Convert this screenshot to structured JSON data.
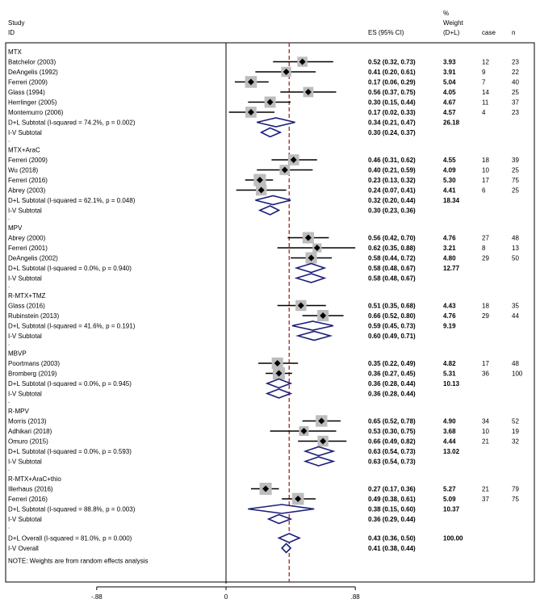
{
  "chart_data": {
    "type": "forest",
    "header": {
      "study": "Study",
      "id": "ID",
      "pct": "%",
      "weight": "Weight",
      "es": "ES (95% CI)",
      "dl": "(D+L)",
      "case": "case",
      "n": "n"
    },
    "axis": {
      "range": [
        -0.88,
        0.88
      ],
      "ticks": [
        {
          "value": -0.88,
          "label": "-.88"
        },
        {
          "value": 0,
          "label": "0"
        },
        {
          "value": 0.88,
          "label": ".88"
        }
      ],
      "reference_line": 0.43
    },
    "groups": [
      {
        "name": "MTX",
        "studies": [
          {
            "label": "Batchelor  (2003)",
            "es": 0.52,
            "lo": 0.32,
            "hi": 0.73,
            "es_text": "0.52 (0.32, 0.73)",
            "weight": "3.93",
            "case": "12",
            "n": "23"
          },
          {
            "label": "DeAngelis  (1992)",
            "es": 0.41,
            "lo": 0.2,
            "hi": 0.61,
            "es_text": "0.41 (0.20, 0.61)",
            "weight": "3.91",
            "case": "9",
            "n": "22"
          },
          {
            "label": "Ferreri  (2009)",
            "es": 0.17,
            "lo": 0.06,
            "hi": 0.29,
            "es_text": "0.17 (0.06, 0.29)",
            "weight": "5.04",
            "case": "7",
            "n": "40"
          },
          {
            "label": "Glass  (1994)",
            "es": 0.56,
            "lo": 0.37,
            "hi": 0.75,
            "es_text": "0.56 (0.37, 0.75)",
            "weight": "4.05",
            "case": "14",
            "n": "25"
          },
          {
            "label": "Herrlinger  (2005)",
            "es": 0.3,
            "lo": 0.15,
            "hi": 0.44,
            "es_text": "0.30 (0.15, 0.44)",
            "weight": "4.67",
            "case": "11",
            "n": "37"
          },
          {
            "label": "Montemurro  (2006)",
            "es": 0.17,
            "lo": 0.02,
            "hi": 0.33,
            "es_text": "0.17 (0.02, 0.33)",
            "weight": "4.57",
            "case": "4",
            "n": "23"
          }
        ],
        "dl": {
          "label": "D+L Subtotal  (I-squared = 74.2%, p = 0.002)",
          "es": 0.34,
          "lo": 0.21,
          "hi": 0.47,
          "es_text": "0.34 (0.21, 0.47)",
          "weight": "26.18"
        },
        "iv": {
          "label": "I-V Subtotal",
          "es": 0.3,
          "lo": 0.24,
          "hi": 0.37,
          "es_text": "0.30 (0.24, 0.37)"
        }
      },
      {
        "name": "MTX+AraC",
        "studies": [
          {
            "label": "Ferreri  (2009)",
            "es": 0.46,
            "lo": 0.31,
            "hi": 0.62,
            "es_text": "0.46 (0.31, 0.62)",
            "weight": "4.55",
            "case": "18",
            "n": "39"
          },
          {
            "label": "Wu  (2018)",
            "es": 0.4,
            "lo": 0.21,
            "hi": 0.59,
            "es_text": "0.40 (0.21, 0.59)",
            "weight": "4.09",
            "case": "10",
            "n": "25"
          },
          {
            "label": "Ferreri  (2016)",
            "es": 0.23,
            "lo": 0.13,
            "hi": 0.32,
            "es_text": "0.23 (0.13, 0.32)",
            "weight": "5.30",
            "case": "17",
            "n": "75"
          },
          {
            "label": "Abrey  (2003)",
            "es": 0.24,
            "lo": 0.07,
            "hi": 0.41,
            "es_text": "0.24 (0.07, 0.41)",
            "weight": "4.41",
            "case": "6",
            "n": "25"
          }
        ],
        "dl": {
          "label": "D+L Subtotal  (I-squared = 62.1%, p = 0.048)",
          "es": 0.32,
          "lo": 0.2,
          "hi": 0.44,
          "es_text": "0.32 (0.20, 0.44)",
          "weight": "18.34"
        },
        "iv": {
          "label": "I-V Subtotal",
          "es": 0.3,
          "lo": 0.23,
          "hi": 0.36,
          "es_text": "0.30 (0.23, 0.36)"
        }
      },
      {
        "name": "MPV",
        "studies": [
          {
            "label": "Abrey  (2000)",
            "es": 0.56,
            "lo": 0.42,
            "hi": 0.7,
            "es_text": "0.56 (0.42, 0.70)",
            "weight": "4.76",
            "case": "27",
            "n": "48"
          },
          {
            "label": "Ferreri  (2001)",
            "es": 0.62,
            "lo": 0.35,
            "hi": 0.88,
            "es_text": "0.62 (0.35, 0.88)",
            "weight": "3.21",
            "case": "8",
            "n": "13"
          },
          {
            "label": "DeAngelis  (2002)",
            "es": 0.58,
            "lo": 0.44,
            "hi": 0.72,
            "es_text": "0.58 (0.44, 0.72)",
            "weight": "4.80",
            "case": "29",
            "n": "50"
          }
        ],
        "dl": {
          "label": "D+L Subtotal  (I-squared = 0.0%, p = 0.940)",
          "es": 0.58,
          "lo": 0.48,
          "hi": 0.67,
          "es_text": "0.58 (0.48, 0.67)",
          "weight": "12.77"
        },
        "iv": {
          "label": "I-V Subtotal",
          "es": 0.58,
          "lo": 0.48,
          "hi": 0.67,
          "es_text": "0.58 (0.48, 0.67)"
        }
      },
      {
        "name": "R-MTX+TMZ",
        "studies": [
          {
            "label": "Glass  (2016)",
            "es": 0.51,
            "lo": 0.35,
            "hi": 0.68,
            "es_text": "0.51 (0.35, 0.68)",
            "weight": "4.43",
            "case": "18",
            "n": "35"
          },
          {
            "label": "Rubinstein  (2013)",
            "es": 0.66,
            "lo": 0.52,
            "hi": 0.8,
            "es_text": "0.66 (0.52, 0.80)",
            "weight": "4.76",
            "case": "29",
            "n": "44"
          }
        ],
        "dl": {
          "label": "D+L Subtotal  (I-squared = 41.6%, p = 0.191)",
          "es": 0.59,
          "lo": 0.45,
          "hi": 0.73,
          "es_text": "0.59 (0.45, 0.73)",
          "weight": "9.19"
        },
        "iv": {
          "label": "I-V Subtotal",
          "es": 0.6,
          "lo": 0.49,
          "hi": 0.71,
          "es_text": "0.60 (0.49, 0.71)"
        }
      },
      {
        "name": "MBVP",
        "studies": [
          {
            "label": "Poortmans  (2003)",
            "es": 0.35,
            "lo": 0.22,
            "hi": 0.49,
            "es_text": "0.35 (0.22, 0.49)",
            "weight": "4.82",
            "case": "17",
            "n": "48"
          },
          {
            "label": "Bromberg  (2019)",
            "es": 0.36,
            "lo": 0.27,
            "hi": 0.45,
            "es_text": "0.36 (0.27, 0.45)",
            "weight": "5.31",
            "case": "36",
            "n": "100"
          }
        ],
        "dl": {
          "label": "D+L Subtotal  (I-squared = 0.0%, p = 0.945)",
          "es": 0.36,
          "lo": 0.28,
          "hi": 0.44,
          "es_text": "0.36 (0.28, 0.44)",
          "weight": "10.13"
        },
        "iv": {
          "label": "I-V Subtotal",
          "es": 0.36,
          "lo": 0.28,
          "hi": 0.44,
          "es_text": "0.36 (0.28, 0.44)"
        }
      },
      {
        "name": "R-MPV",
        "studies": [
          {
            "label": "Morris  (2013)",
            "es": 0.65,
            "lo": 0.52,
            "hi": 0.78,
            "es_text": "0.65 (0.52, 0.78)",
            "weight": "4.90",
            "case": "34",
            "n": "52"
          },
          {
            "label": "Adhikari  (2018)",
            "es": 0.53,
            "lo": 0.3,
            "hi": 0.75,
            "es_text": "0.53 (0.30, 0.75)",
            "weight": "3.68",
            "case": "10",
            "n": "19"
          },
          {
            "label": "Omuro  (2015)",
            "es": 0.66,
            "lo": 0.49,
            "hi": 0.82,
            "es_text": "0.66 (0.49, 0.82)",
            "weight": "4.44",
            "case": "21",
            "n": "32"
          }
        ],
        "dl": {
          "label": "D+L Subtotal  (I-squared = 0.0%, p = 0.593)",
          "es": 0.63,
          "lo": 0.54,
          "hi": 0.73,
          "es_text": "0.63 (0.54, 0.73)",
          "weight": "13.02"
        },
        "iv": {
          "label": "I-V Subtotal",
          "es": 0.63,
          "lo": 0.54,
          "hi": 0.73,
          "es_text": "0.63 (0.54, 0.73)"
        }
      },
      {
        "name": "R-MTX+AraC+thio",
        "studies": [
          {
            "label": "Illerhaus  (2016)",
            "es": 0.27,
            "lo": 0.17,
            "hi": 0.36,
            "es_text": "0.27 (0.17, 0.36)",
            "weight": "5.27",
            "case": "21",
            "n": "79"
          },
          {
            "label": "Ferreri  (2016)",
            "es": 0.49,
            "lo": 0.38,
            "hi": 0.61,
            "es_text": "0.49 (0.38, 0.61)",
            "weight": "5.09",
            "case": "37",
            "n": "75"
          }
        ],
        "dl": {
          "label": "D+L Subtotal  (I-squared = 88.8%, p = 0.003)",
          "es": 0.38,
          "lo": 0.15,
          "hi": 0.6,
          "es_text": "0.38 (0.15, 0.60)",
          "weight": "10.37"
        },
        "iv": {
          "label": "I-V Subtotal",
          "es": 0.36,
          "lo": 0.29,
          "hi": 0.44,
          "es_text": "0.36 (0.29, 0.44)"
        }
      }
    ],
    "overall": {
      "dl": {
        "label": "D+L Overall  (I-squared = 81.0%, p = 0.000)",
        "es": 0.43,
        "lo": 0.36,
        "hi": 0.5,
        "es_text": "0.43 (0.36, 0.50)",
        "weight": "100.00"
      },
      "iv": {
        "label": "I-V Overall",
        "es": 0.41,
        "lo": 0.38,
        "hi": 0.44,
        "es_text": "0.41 (0.38, 0.44)"
      }
    },
    "note": "NOTE: Weights are from random effects analysis",
    "separator": ".",
    "colors": {
      "diamond": "#1c1f7a",
      "reference": "#9b2a2a",
      "box": "#bdbdbd",
      "text": "#000000"
    }
  }
}
